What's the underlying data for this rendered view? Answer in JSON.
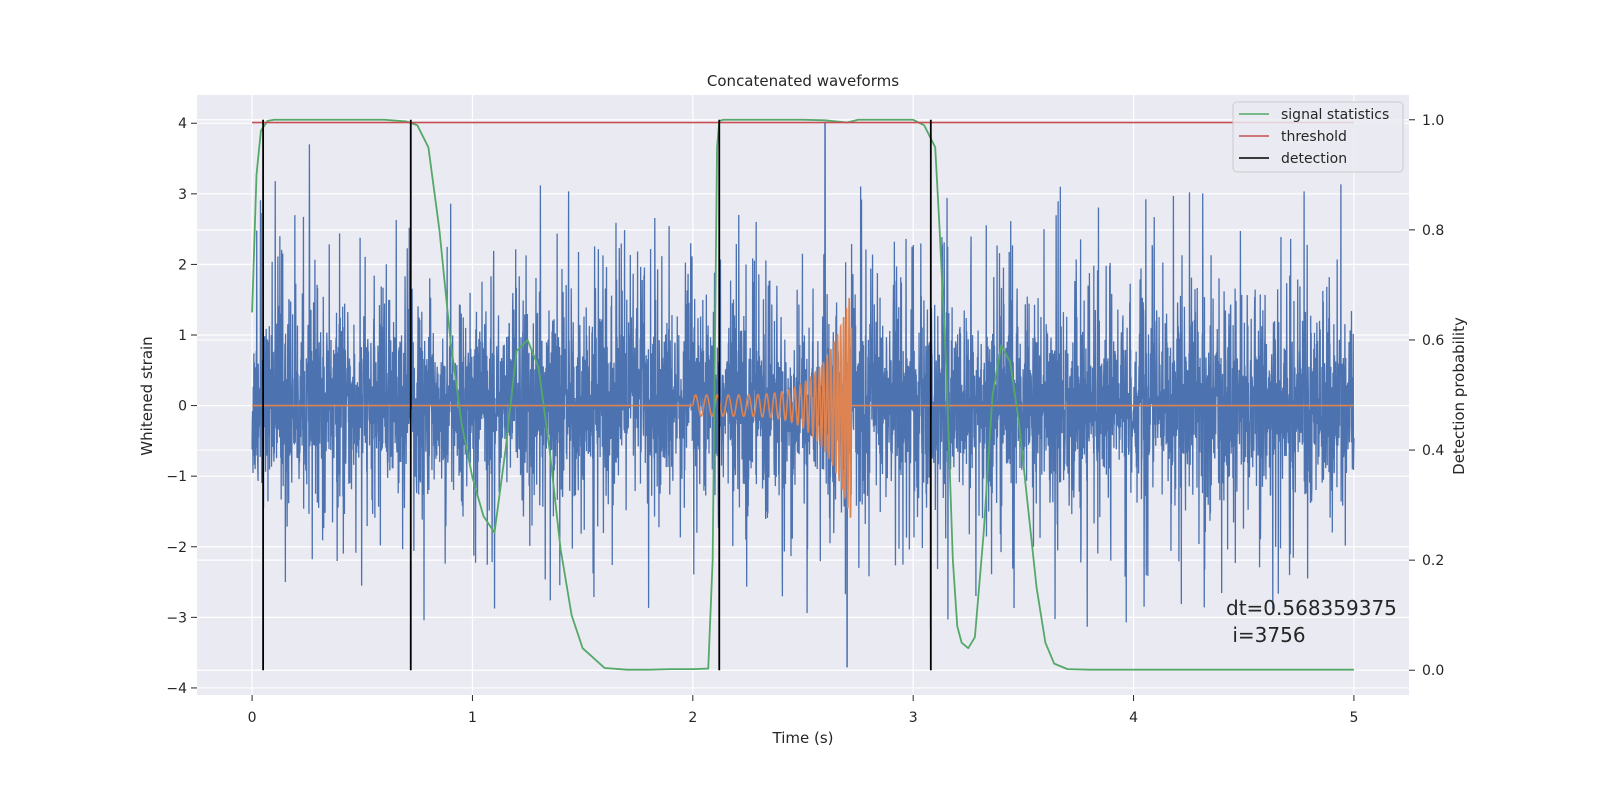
{
  "chart_data": {
    "type": "line",
    "title": "Concatenated waveforms",
    "xlabel": "Time (s)",
    "ylabel": "Whitened strain",
    "ylabel_right": "Detection probability",
    "xlim": [
      -0.25,
      5.25
    ],
    "ylim": [
      -4.1,
      4.4
    ],
    "ylim_right": [
      -0.045,
      1.045
    ],
    "x_ticks": [
      "0",
      "1",
      "2",
      "3",
      "4",
      "5"
    ],
    "y_ticks": [
      "4",
      "3",
      "2",
      "1",
      "0",
      "−1",
      "−2",
      "−3",
      "−4"
    ],
    "y_ticks_right": [
      "1.0",
      "0.8",
      "0.6",
      "0.4",
      "0.2",
      "0.0"
    ],
    "grid": true,
    "legend_position": "top-right",
    "annotation": {
      "line1": "dt=0.568359375",
      "line2": " i=3756"
    },
    "colors": {
      "background": "#eaeaf2",
      "grid": "#ffffff",
      "noise": "#4c72b0",
      "injection": "#dd8452",
      "signal": "#55a868",
      "threshold": "#c44e52",
      "detection": "#000000"
    },
    "series": [
      {
        "name": "signal statistics",
        "axis": "right",
        "x": [
          0,
          0.02,
          0.04,
          0.07,
          0.1,
          0.6,
          0.7,
          0.75,
          0.8,
          0.85,
          0.9,
          0.95,
          1.0,
          1.05,
          1.1,
          1.15,
          1.2,
          1.25,
          1.3,
          1.35,
          1.4,
          1.45,
          1.5,
          1.6,
          1.7,
          1.8,
          1.9,
          2.0,
          2.07,
          2.09,
          2.11,
          2.12,
          2.14,
          2.2,
          2.5,
          2.6,
          2.65,
          2.7,
          2.75,
          2.8,
          3.0,
          3.05,
          3.1,
          3.12,
          3.15,
          3.18,
          3.2,
          3.22,
          3.25,
          3.28,
          3.32,
          3.36,
          3.4,
          3.44,
          3.48,
          3.52,
          3.56,
          3.6,
          3.64,
          3.7,
          3.8,
          4.0,
          4.5,
          5.0
        ],
        "y": [
          0.65,
          0.9,
          0.98,
          0.998,
          1.0,
          1.0,
          0.997,
          0.99,
          0.95,
          0.8,
          0.6,
          0.45,
          0.35,
          0.28,
          0.25,
          0.4,
          0.58,
          0.6,
          0.55,
          0.4,
          0.22,
          0.1,
          0.04,
          0.004,
          0.001,
          0.001,
          0.002,
          0.002,
          0.003,
          0.2,
          0.95,
          0.998,
          1.0,
          1.0,
          1.0,
          0.999,
          0.997,
          0.995,
          1.0,
          1.0,
          1.0,
          0.99,
          0.95,
          0.8,
          0.55,
          0.2,
          0.08,
          0.05,
          0.04,
          0.06,
          0.25,
          0.5,
          0.59,
          0.56,
          0.45,
          0.3,
          0.15,
          0.05,
          0.012,
          0.002,
          0.001,
          0.001,
          0.001,
          0.001
        ]
      },
      {
        "name": "threshold",
        "axis": "right",
        "value": 0.995,
        "x_range": [
          0,
          5
        ]
      },
      {
        "name": "detection",
        "axis": "right",
        "x": [
          0.05,
          0.72,
          2.12,
          3.08
        ],
        "y_range": [
          0,
          1
        ]
      },
      {
        "axis": "left",
        "description": "noise",
        "x_range": [
          0,
          5
        ],
        "samples": 5000,
        "core_amplitude": 0.6,
        "peak_max": 4.0,
        "peak_min": -3.7,
        "spikes": [
          {
            "x": 0.26,
            "y": 3.7
          },
          {
            "x": 2.6,
            "y": 4.0
          },
          {
            "x": 2.7,
            "y": -3.7
          }
        ]
      },
      {
        "axis": "left",
        "description": "injection",
        "x_range": [
          2.0,
          2.72
        ],
        "amplitude_start": 0.15,
        "amplitude_peak": 1.65,
        "amplitude_min": -1.75,
        "frequency_start": 20,
        "frequency_end": 85
      }
    ]
  }
}
